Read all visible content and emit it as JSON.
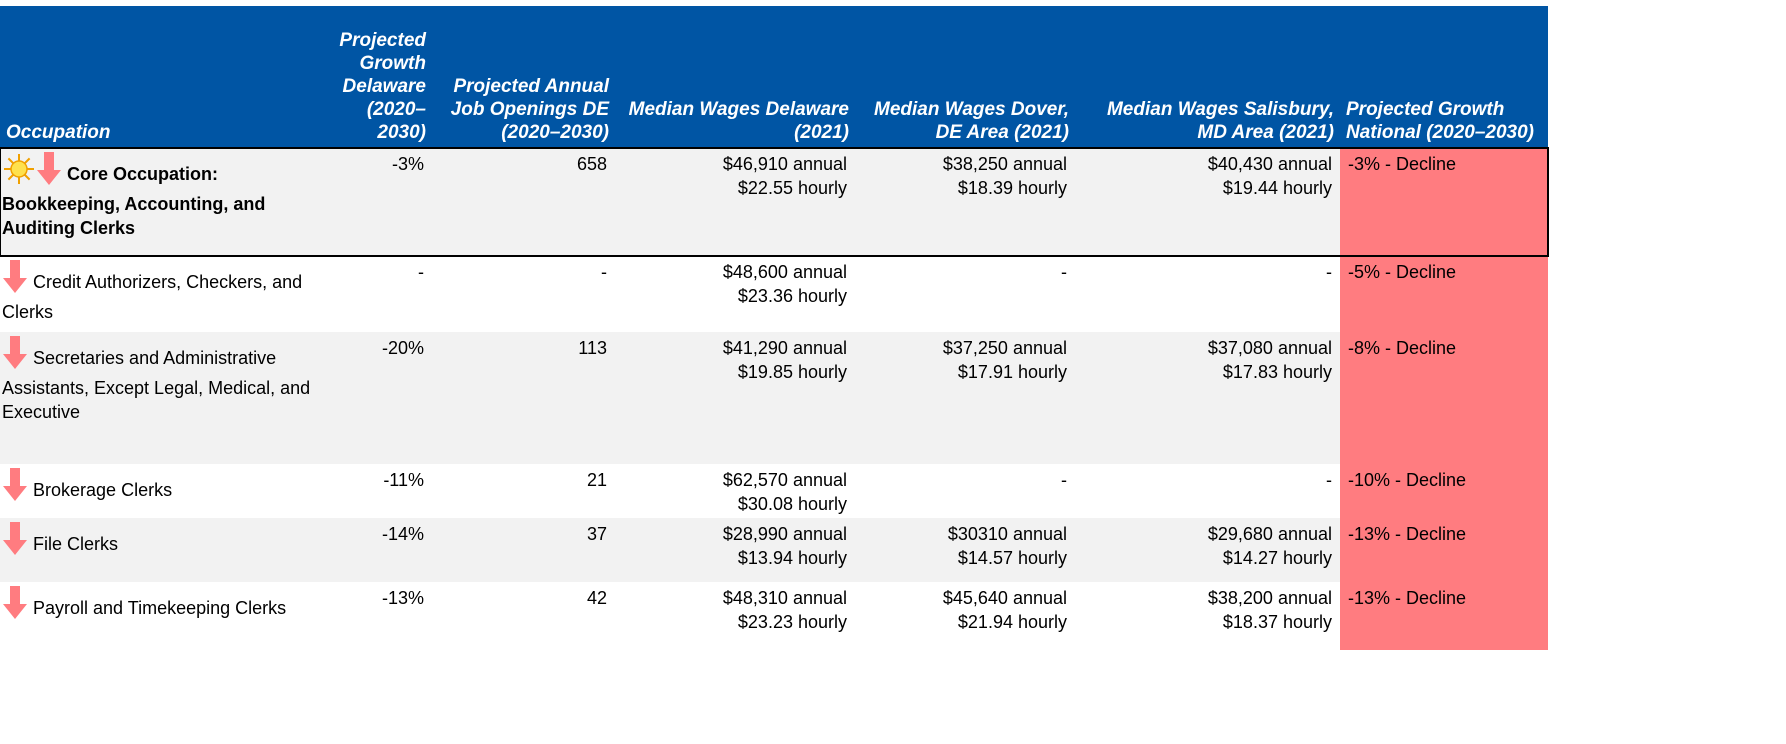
{
  "table": {
    "headers": [
      "Occupation",
      "Projected Growth Delaware (2020–2030)",
      "Projected Annual Job Openings DE (2020–2030)",
      "Median Wages Delaware (2021)",
      "Median Wages Dover, DE Area (2021)",
      "Median Wages Salisbury, MD Area (2021)",
      "Projected Growth National (2020–2030)"
    ],
    "rows": [
      {
        "occupation": "Core Occupation: Bookkeeping, Accounting, and Auditing Clerks",
        "growth_de": "-3%",
        "openings_de": "658",
        "wages_de": [
          "$46,910 annual",
          "$22.55 hourly"
        ],
        "wages_dover": [
          "$38,250 annual",
          "$18.39 hourly"
        ],
        "wages_salisbury": [
          "$40,430 annual",
          "$19.44 hourly"
        ],
        "growth_national": "-3% - Decline"
      },
      {
        "occupation": "Credit Authorizers, Checkers, and Clerks",
        "growth_de": "-",
        "openings_de": "-",
        "wages_de": [
          "$48,600 annual",
          "$23.36 hourly"
        ],
        "wages_dover": [
          "-"
        ],
        "wages_salisbury": [
          "-"
        ],
        "growth_national": "-5% - Decline"
      },
      {
        "occupation": "Secretaries and Administrative Assistants, Except Legal, Medical, and Executive",
        "growth_de": "-20%",
        "openings_de": "113",
        "wages_de": [
          "$41,290 annual",
          "$19.85 hourly"
        ],
        "wages_dover": [
          "$37,250 annual",
          "$17.91 hourly"
        ],
        "wages_salisbury": [
          "$37,080 annual",
          "$17.83 hourly"
        ],
        "growth_national": "-8% - Decline"
      },
      {
        "occupation": "Brokerage Clerks",
        "growth_de": "-11%",
        "openings_de": "21",
        "wages_de": [
          "$62,570 annual",
          "$30.08 hourly"
        ],
        "wages_dover": [
          "-"
        ],
        "wages_salisbury": [
          "-"
        ],
        "growth_national": "-10% - Decline"
      },
      {
        "occupation": "File Clerks",
        "growth_de": "-14%",
        "openings_de": "37",
        "wages_de": [
          "$28,990 annual",
          "$13.94 hourly"
        ],
        "wages_dover": [
          "$30310 annual",
          "$14.57 hourly"
        ],
        "wages_salisbury": [
          "$29,680 annual",
          "$14.27 hourly"
        ],
        "growth_national": "-13% - Decline"
      },
      {
        "occupation": "Payroll and Timekeeping Clerks",
        "growth_de": "-13%",
        "openings_de": "42",
        "wages_de": [
          "$48,310 annual",
          "$23.23 hourly"
        ],
        "wages_dover": [
          "$45,640 annual",
          "$21.94 hourly"
        ],
        "wages_salisbury": [
          "$38,200 annual",
          "$18.37 hourly"
        ],
        "growth_national": "-13% - Decline"
      }
    ]
  }
}
